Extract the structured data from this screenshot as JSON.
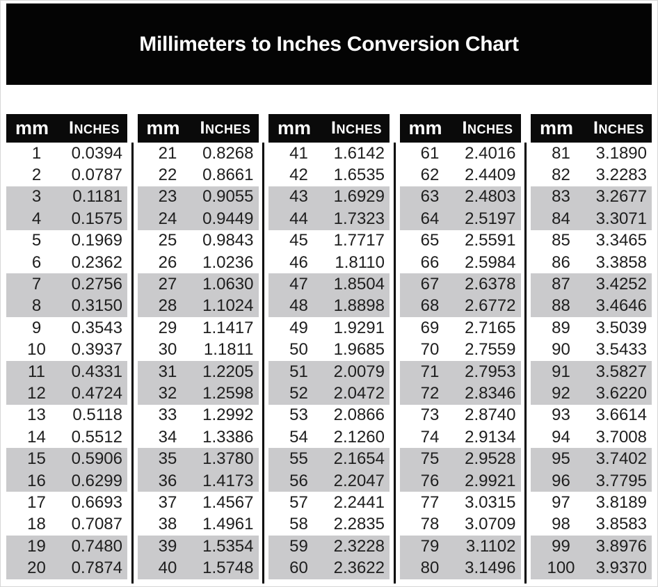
{
  "title": "Millimeters to Inches Conversion Chart",
  "column_headers": {
    "mm": "mm",
    "inches": "Inches"
  },
  "colors": {
    "banner_bg": "#040404",
    "table_header_bg": "#0a0a0a",
    "header_text": "#ffffff",
    "stripe": "#cacacc",
    "row_bg": "#ffffff",
    "body_text": "#1e1e1e"
  },
  "chart_data": {
    "type": "table",
    "title": "Millimeters to Inches Conversion Chart",
    "columns": [
      "mm",
      "Inches"
    ],
    "groups": [
      [
        [
          1,
          "0.0394"
        ],
        [
          2,
          "0.0787"
        ],
        [
          3,
          "0.1181"
        ],
        [
          4,
          "0.1575"
        ],
        [
          5,
          "0.1969"
        ],
        [
          6,
          "0.2362"
        ],
        [
          7,
          "0.2756"
        ],
        [
          8,
          "0.3150"
        ],
        [
          9,
          "0.3543"
        ],
        [
          10,
          "0.3937"
        ],
        [
          11,
          "0.4331"
        ],
        [
          12,
          "0.4724"
        ],
        [
          13,
          "0.5118"
        ],
        [
          14,
          "0.5512"
        ],
        [
          15,
          "0.5906"
        ],
        [
          16,
          "0.6299"
        ],
        [
          17,
          "0.6693"
        ],
        [
          18,
          "0.7087"
        ],
        [
          19,
          "0.7480"
        ],
        [
          20,
          "0.7874"
        ]
      ],
      [
        [
          21,
          "0.8268"
        ],
        [
          22,
          "0.8661"
        ],
        [
          23,
          "0.9055"
        ],
        [
          24,
          "0.9449"
        ],
        [
          25,
          "0.9843"
        ],
        [
          26,
          "1.0236"
        ],
        [
          27,
          "1.0630"
        ],
        [
          28,
          "1.1024"
        ],
        [
          29,
          "1.1417"
        ],
        [
          30,
          "1.1811"
        ],
        [
          31,
          "1.2205"
        ],
        [
          32,
          "1.2598"
        ],
        [
          33,
          "1.2992"
        ],
        [
          34,
          "1.3386"
        ],
        [
          35,
          "1.3780"
        ],
        [
          36,
          "1.4173"
        ],
        [
          37,
          "1.4567"
        ],
        [
          38,
          "1.4961"
        ],
        [
          39,
          "1.5354"
        ],
        [
          40,
          "1.5748"
        ]
      ],
      [
        [
          41,
          "1.6142"
        ],
        [
          42,
          "1.6535"
        ],
        [
          43,
          "1.6929"
        ],
        [
          44,
          "1.7323"
        ],
        [
          45,
          "1.7717"
        ],
        [
          46,
          "1.8110"
        ],
        [
          47,
          "1.8504"
        ],
        [
          48,
          "1.8898"
        ],
        [
          49,
          "1.9291"
        ],
        [
          50,
          "1.9685"
        ],
        [
          51,
          "2.0079"
        ],
        [
          52,
          "2.0472"
        ],
        [
          53,
          "2.0866"
        ],
        [
          54,
          "2.1260"
        ],
        [
          55,
          "2.1654"
        ],
        [
          56,
          "2.2047"
        ],
        [
          57,
          "2.2441"
        ],
        [
          58,
          "2.2835"
        ],
        [
          59,
          "2.3228"
        ],
        [
          60,
          "2.3622"
        ]
      ],
      [
        [
          61,
          "2.4016"
        ],
        [
          62,
          "2.4409"
        ],
        [
          63,
          "2.4803"
        ],
        [
          64,
          "2.5197"
        ],
        [
          65,
          "2.5591"
        ],
        [
          66,
          "2.5984"
        ],
        [
          67,
          "2.6378"
        ],
        [
          68,
          "2.6772"
        ],
        [
          69,
          "2.7165"
        ],
        [
          70,
          "2.7559"
        ],
        [
          71,
          "2.7953"
        ],
        [
          72,
          "2.8346"
        ],
        [
          73,
          "2.8740"
        ],
        [
          74,
          "2.9134"
        ],
        [
          75,
          "2.9528"
        ],
        [
          76,
          "2.9921"
        ],
        [
          77,
          "3.0315"
        ],
        [
          78,
          "3.0709"
        ],
        [
          79,
          "3.1102"
        ],
        [
          80,
          "3.1496"
        ]
      ],
      [
        [
          81,
          "3.1890"
        ],
        [
          82,
          "3.2283"
        ],
        [
          83,
          "3.2677"
        ],
        [
          84,
          "3.3071"
        ],
        [
          85,
          "3.3465"
        ],
        [
          86,
          "3.3858"
        ],
        [
          87,
          "3.4252"
        ],
        [
          88,
          "3.4646"
        ],
        [
          89,
          "3.5039"
        ],
        [
          90,
          "3.5433"
        ],
        [
          91,
          "3.5827"
        ],
        [
          92,
          "3.6220"
        ],
        [
          93,
          "3.6614"
        ],
        [
          94,
          "3.7008"
        ],
        [
          95,
          "3.7402"
        ],
        [
          96,
          "3.7795"
        ],
        [
          97,
          "3.8189"
        ],
        [
          98,
          "3.8583"
        ],
        [
          99,
          "3.8976"
        ],
        [
          100,
          "3.9370"
        ]
      ]
    ]
  }
}
